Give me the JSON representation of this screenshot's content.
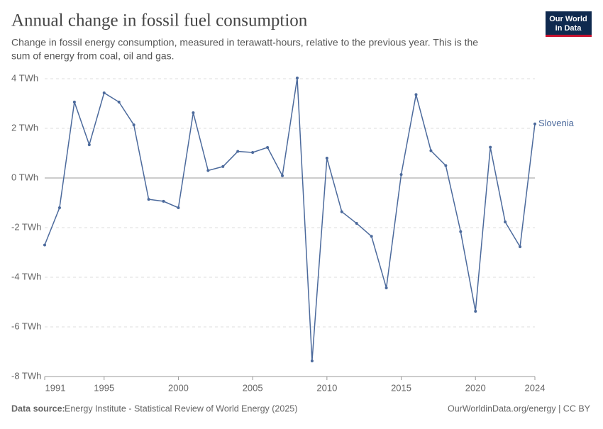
{
  "chart_data": {
    "type": "line",
    "title": "Annual change in fossil fuel consumption",
    "subtitle": [
      "Change in fossil energy consumption, measured in terawatt-hours, relative to the previous year. This is the",
      "sum of energy from coal, oil and gas."
    ],
    "logo": [
      "Our World",
      "in Data"
    ],
    "source_label": "Data source:",
    "source": "Energy Institute - Statistical Review of World Energy (2025)",
    "credit": "OurWorldinData.org/energy | CC BY",
    "x": [
      1991,
      1992,
      1993,
      1994,
      1995,
      1996,
      1997,
      1998,
      1999,
      2000,
      2001,
      2002,
      2003,
      2004,
      2005,
      2006,
      2007,
      2008,
      2009,
      2010,
      2011,
      2012,
      2013,
      2014,
      2015,
      2016,
      2017,
      2018,
      2019,
      2020,
      2021,
      2022,
      2023,
      2024
    ],
    "series": [
      {
        "name": "Slovenia",
        "color": "#4c6a9c",
        "values": [
          -2.7,
          -1.2,
          3.06,
          1.34,
          3.43,
          3.06,
          2.14,
          -0.86,
          -0.94,
          -1.2,
          2.63,
          0.3,
          0.46,
          1.07,
          1.03,
          1.23,
          0.09,
          4.03,
          -7.37,
          0.8,
          -1.36,
          -1.83,
          -2.35,
          -4.43,
          0.14,
          3.36,
          1.1,
          0.5,
          -2.16,
          -5.37,
          1.24,
          -1.77,
          -2.77,
          2.18
        ]
      }
    ],
    "xlim": [
      1991,
      2024
    ],
    "xticks": [
      1991,
      1995,
      2000,
      2005,
      2010,
      2015,
      2020,
      2024
    ],
    "ylim": [
      -8,
      4
    ],
    "yticks": [
      {
        "value": -8,
        "label": "-8 TWh"
      },
      {
        "value": -6,
        "label": "-6 TWh"
      },
      {
        "value": -4,
        "label": "-4 TWh"
      },
      {
        "value": -2,
        "label": "-2 TWh"
      },
      {
        "value": 0,
        "label": "0 TWh"
      },
      {
        "value": 2,
        "label": "2 TWh"
      },
      {
        "value": 4,
        "label": "4 TWh"
      }
    ],
    "grid": true
  }
}
